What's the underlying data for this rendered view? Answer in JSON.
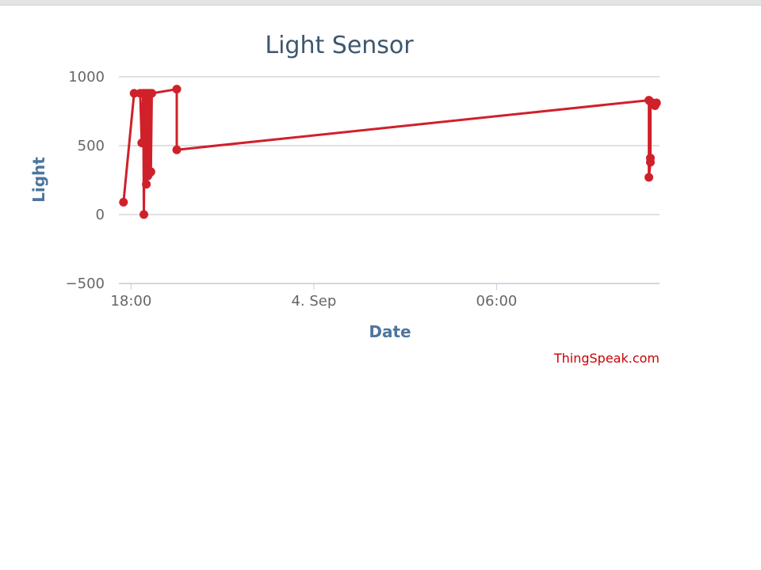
{
  "chart_data": {
    "type": "line",
    "title": "Light Sensor",
    "xlabel": "Date",
    "ylabel": "Light",
    "ylim": [
      -500,
      1000
    ],
    "yticks": [
      -500,
      0,
      500,
      1000
    ],
    "ytick_labels": [
      "−500",
      "0",
      "500",
      "1000"
    ],
    "x_unit": "hours",
    "xlim": [
      17.6,
      14.5
    ],
    "xticks": [
      {
        "value": 18,
        "label": "18:00"
      },
      {
        "value": 24,
        "label": "4. Sep"
      },
      {
        "value": 30,
        "label": "06:00"
      }
    ],
    "grid": true,
    "legend": "none",
    "series": [
      {
        "color": "#d0202a",
        "x": [
          17.75,
          18.1,
          18.3,
          18.35,
          18.4,
          18.42,
          18.45,
          18.5,
          18.52,
          18.55,
          18.58,
          18.6,
          18.62,
          18.65,
          18.68,
          19.5,
          19.5,
          35.0,
          35.0,
          35.05,
          35.05,
          35.05,
          35.1,
          35.15,
          35.2,
          35.25
        ],
        "y": [
          90,
          880,
          880,
          520,
          880,
          0,
          880,
          220,
          880,
          280,
          880,
          300,
          880,
          310,
          880,
          910,
          470,
          830,
          270,
          380,
          410,
          820,
          810,
          800,
          790,
          810
        ]
      }
    ],
    "credit": "ThingSpeak.com"
  }
}
